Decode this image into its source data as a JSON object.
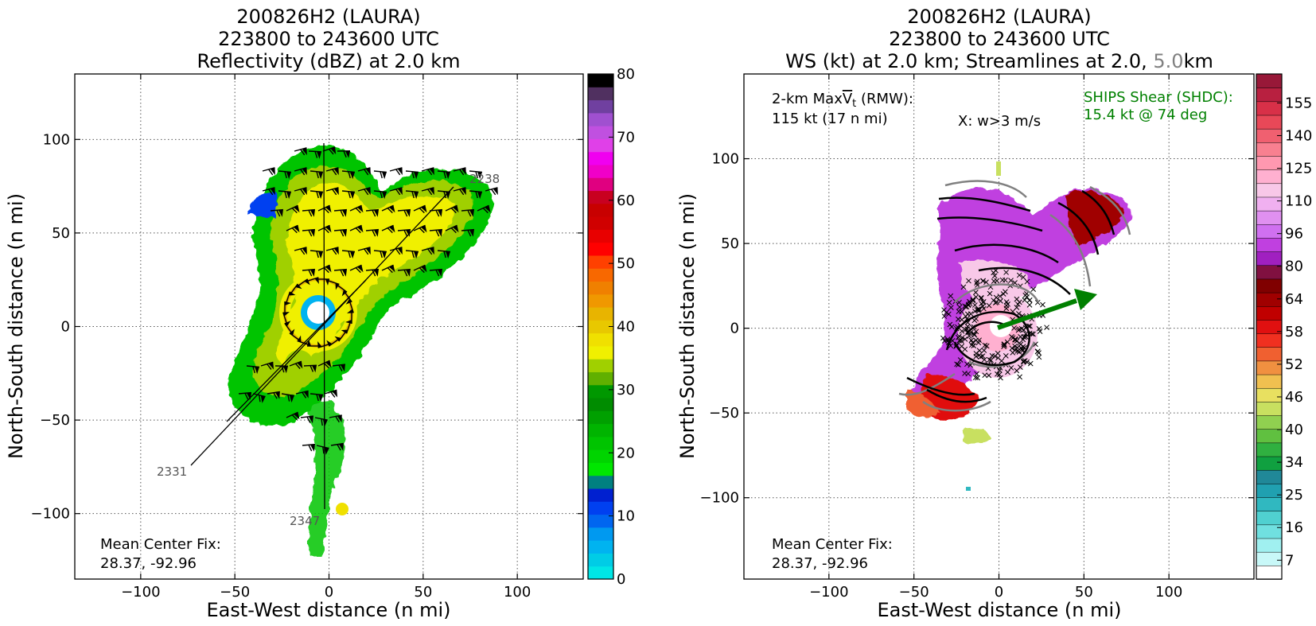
{
  "chart_data": [
    {
      "type": "heatmap",
      "title_lines": [
        "200826H2 (LAURA)",
        "223800 to 243600 UTC",
        "Reflectivity (dBZ) at 2.0 km"
      ],
      "xlabel": "East-West distance (n mi)",
      "ylabel": "North-South distance (n mi)",
      "xlim": [
        -135,
        135
      ],
      "ylim": [
        -135,
        135
      ],
      "xticks": [
        -100,
        -50,
        0,
        50,
        100
      ],
      "yticks": [
        -100,
        -50,
        0,
        50,
        100
      ],
      "grid": true,
      "colorbar": {
        "min": 0,
        "max": 80,
        "ticks": [
          0,
          10,
          20,
          30,
          40,
          50,
          60,
          70,
          80
        ],
        "colors": [
          "#00e6e6",
          "#00cce6",
          "#00b3f0",
          "#0099f0",
          "#0066f0",
          "#0040f0",
          "#0020d0",
          "#008080",
          "#00e600",
          "#00d400",
          "#00c400",
          "#00b400",
          "#00a000",
          "#008c00",
          "#009800",
          "#60b000",
          "#a0d000",
          "#f0f000",
          "#f0e000",
          "#e8c800",
          "#e8b400",
          "#f09800",
          "#f08000",
          "#f86800",
          "#ff4000",
          "#ff0000",
          "#e80000",
          "#d00000",
          "#c80000",
          "#c80020",
          "#e00080",
          "#f000c8",
          "#f000f0",
          "#e040e8",
          "#c050e0",
          "#a050d0",
          "#7040a0",
          "#503060",
          "#000000"
        ]
      },
      "track_labels": [
        "2238",
        "2331",
        "2347"
      ],
      "annotation_lines": [
        "Mean Center Fix:",
        "28.37, -92.96"
      ]
    },
    {
      "type": "heatmap",
      "title_lines": [
        "200826H2 (LAURA)",
        "223800 to 243600 UTC"
      ],
      "title_line3": {
        "prefix": "WS (kt) at 2.0 km; Streamlines at 2.0, ",
        "highlight": "5.0",
        "suffix": "km"
      },
      "xlabel": "East-West distance (n mi)",
      "ylabel": "North-South distance (n mi)",
      "xlim": [
        -150,
        150
      ],
      "ylim": [
        -148,
        150
      ],
      "xticks": [
        -100,
        -50,
        0,
        50,
        100
      ],
      "yticks": [
        -100,
        -50,
        0,
        50,
        100
      ],
      "grid": true,
      "colorbar": {
        "ticks": [
          7,
          16,
          25,
          34,
          40,
          46,
          52,
          58,
          64,
          80,
          96,
          110,
          125,
          140,
          155
        ],
        "colors": [
          "#ffffff",
          "#c8f8f8",
          "#a0f0f0",
          "#70e0e0",
          "#50d0d0",
          "#30b8c0",
          "#20a0b0",
          "#208898",
          "#10a040",
          "#30b040",
          "#60c040",
          "#90d050",
          "#c8e060",
          "#e8e060",
          "#f0c050",
          "#f09040",
          "#f06030",
          "#f03020",
          "#e01010",
          "#c00000",
          "#a00000",
          "#800000",
          "#801040",
          "#a020c0",
          "#c040e0",
          "#d070f0",
          "#e090f0",
          "#f0b0f0",
          "#f8c8e8",
          "#ffb0d0",
          "#ff98b0",
          "#f88090",
          "#f06070",
          "#e84858",
          "#d83048",
          "#b82040",
          "#981838"
        ]
      },
      "max_wind_lines": [
        "2-km MaxV̅t (RMW):",
        "115 kt (17 n mi)"
      ],
      "max_wind_label": {
        "base": "2-km Max",
        "v": "V",
        "sub": "t",
        "rest": " (RMW):"
      },
      "w_note": "X: w>3 m/s",
      "shear_lines": [
        "SHIPS Shear (SHDC):",
        "15.4 kt @ 74 deg"
      ],
      "annotation_lines": [
        "Mean Center Fix:",
        "28.37, -92.96"
      ],
      "colors": {
        "shear": "#008000",
        "highlight": "#808080"
      }
    }
  ]
}
